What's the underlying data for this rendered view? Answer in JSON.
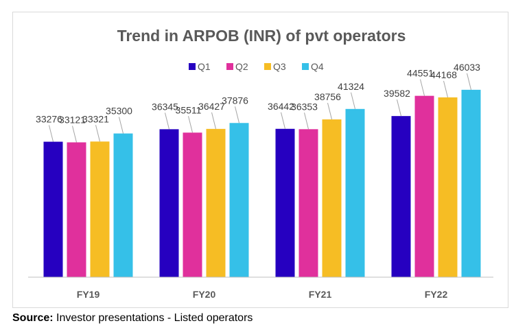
{
  "chart_data": {
    "type": "bar",
    "title": "Trend in ARPOB (INR) of pvt operators",
    "categories": [
      "FY19",
      "FY20",
      "FY21",
      "FY22"
    ],
    "series": [
      {
        "name": "Q1",
        "color": "#2600c0",
        "values": [
          33276,
          36345,
          36442,
          39582
        ]
      },
      {
        "name": "Q2",
        "color": "#e0309c",
        "values": [
          33121,
          35511,
          36353,
          44551
        ]
      },
      {
        "name": "Q3",
        "color": "#f6bd24",
        "values": [
          33321,
          36427,
          38756,
          44168
        ]
      },
      {
        "name": "Q4",
        "color": "#35c0e8",
        "values": [
          35300,
          37876,
          41324,
          46033
        ]
      }
    ],
    "ylim": [
      0,
      60000
    ],
    "legend_position": "top",
    "grid": false,
    "data_labels": true
  },
  "source": {
    "label": "Source:",
    "text": "Investor presentations - Listed operators"
  }
}
